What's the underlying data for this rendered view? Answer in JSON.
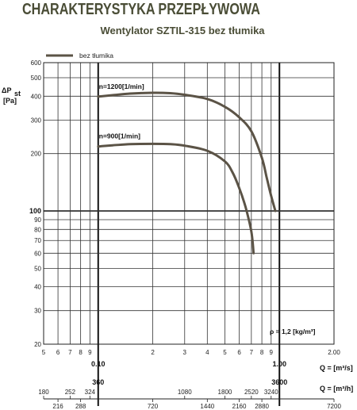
{
  "header": {
    "title": "CHARAKTERYSTYKA PRZEPŁYWOWA",
    "subtitle": "Wentylator SZTIL-315 bez tłumika"
  },
  "chart_data": {
    "type": "line",
    "x_scale": "log",
    "y_scale": "log",
    "xlim": [
      0.05,
      2.0
    ],
    "ylim": [
      20,
      600
    ],
    "grid": true,
    "ylabel_main": "ΔP",
    "ylabel_sub": "st",
    "ylabel_unit": "[Pa]",
    "legend": {
      "placement": "top-left",
      "entries": [
        "bez tłumika"
      ]
    },
    "annotation": "ρ = 1,2 [kg/m³]",
    "y_ticks": [
      20,
      30,
      40,
      50,
      60,
      70,
      80,
      90,
      100,
      200,
      300,
      400,
      500,
      600
    ],
    "y_tick_labels": [
      "20",
      "30",
      "40",
      "50",
      "60",
      "70",
      "80",
      "90",
      "100",
      "200",
      "300",
      "400",
      "500",
      "600"
    ],
    "y_bold_ticks": [
      100
    ],
    "x_tick_labels": [
      "5",
      "6",
      "7",
      "8",
      "9",
      "2",
      "3",
      "4",
      "5",
      "6",
      "7",
      "8",
      "9",
      "2.00"
    ],
    "x_tick_values": [
      0.05,
      0.06,
      0.07,
      0.08,
      0.09,
      0.2,
      0.3,
      0.4,
      0.5,
      0.6,
      0.7,
      0.8,
      0.9,
      2.0
    ],
    "x_major_labels": [
      "0.10",
      "1.00"
    ],
    "x_major_values": [
      0.1,
      1.0
    ],
    "x_unit_label": "Q = [m³/s]",
    "secondary_axis": {
      "unit_label": "Q = [m³/h]",
      "major_labels": [
        "360",
        "3600"
      ],
      "major_values": [
        360,
        3600
      ],
      "top_labels": [
        "180",
        "252",
        "324",
        "1080",
        "1800",
        "2520",
        "3240"
      ],
      "top_values": [
        180,
        252,
        324,
        1080,
        1800,
        2520,
        3240
      ],
      "bottom_labels": [
        "216",
        "288",
        "720",
        "1440",
        "2160",
        "2880",
        "7200"
      ],
      "bottom_values": [
        216,
        288,
        720,
        1440,
        2160,
        2880,
        7200
      ]
    },
    "series": [
      {
        "label": "n=1200[1/min]",
        "color": "#5b5346",
        "points": [
          [
            0.1,
            398
          ],
          [
            0.12,
            405
          ],
          [
            0.15,
            413
          ],
          [
            0.2,
            417
          ],
          [
            0.25,
            415
          ],
          [
            0.3,
            407
          ],
          [
            0.4,
            387
          ],
          [
            0.5,
            352
          ],
          [
            0.6,
            310
          ],
          [
            0.7,
            262
          ],
          [
            0.8,
            190
          ],
          [
            0.85,
            150
          ],
          [
            0.9,
            120
          ],
          [
            0.95,
            100
          ]
        ]
      },
      {
        "label": "n=900[1/min]",
        "color": "#5b5346",
        "points": [
          [
            0.1,
            218
          ],
          [
            0.12,
            221
          ],
          [
            0.15,
            224
          ],
          [
            0.2,
            225
          ],
          [
            0.25,
            224
          ],
          [
            0.3,
            220
          ],
          [
            0.4,
            207
          ],
          [
            0.5,
            182
          ],
          [
            0.55,
            160
          ],
          [
            0.6,
            132
          ],
          [
            0.65,
            105
          ],
          [
            0.7,
            78
          ],
          [
            0.72,
            60
          ]
        ]
      }
    ]
  }
}
